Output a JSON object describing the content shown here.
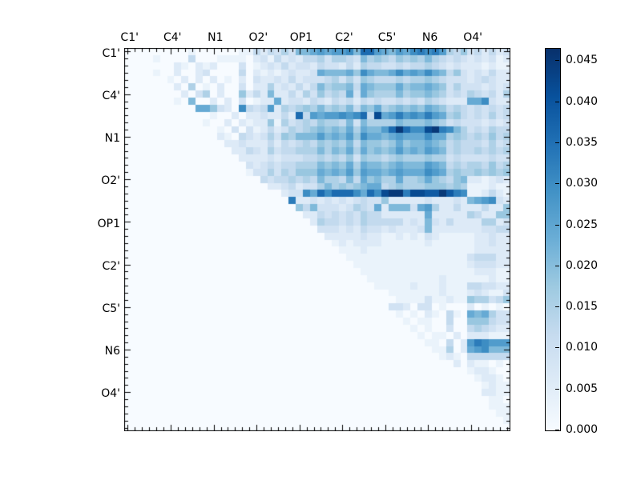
{
  "chart_data": {
    "type": "heatmap",
    "title": "",
    "xlabel": "",
    "ylabel": "",
    "n": 54,
    "tick_group_size": 6,
    "x_tick_labels": [
      "C1'",
      "C4'",
      "N1",
      "O2'",
      "OP1",
      "C2'",
      "C5'",
      "N6",
      "O4'"
    ],
    "y_tick_labels": [
      "C1'",
      "C4'",
      "N1",
      "O2'",
      "OP1",
      "C2'",
      "C5'",
      "N6",
      "O4'"
    ],
    "colormap": "Blues",
    "vmin": 0.0,
    "vmax": 0.0465,
    "cell_unit": 0.003,
    "grid": false,
    "legend_position": "colorbar-right",
    "structure_note": "upper-triangular matrix; lower triangle is zero",
    "matrix_hex_rows": [
      "0000000001000000114243537789899a7cc98798abab9546342423",
      "000010000400011110231423244535543756546565754343232312",
      "000000021021200030123242332433242544334344543232221211",
      "000010020023000040212123223877786a8778a898a87463232422",
      "000000102020201020322324233345353654445455654333234322",
      "000000020501020030225232424756674876668677876353332323",
      "000000002035020062427224253645483865557566765343543425",
      "00000001070020203012282332432434243433434354322288a322",
      "0000000000886320a4349254565756574768567676876454343434",
      "000000000000100202232242c49899a9ac4e89b9a9b98564343534",
      "000000000001002021226153454655473755557666765343332323",
      "0000000000000103031242354567676858779cfcaaefba75343544",
      "000000000000021043235365777978796a88789888a88565454645",
      "000000000000002232224243454656574766568677876454443534",
      "000000000000000224325344555757685867679787987454454545",
      "000000000000000022223233344545463655456555655343333433",
      "000000000000000003234344555767685877678777987454554645",
      "000000000000000001335354666878796988789888a98565565656",
      "000000000000000000043445454755474867558556865467221232",
      "000000000000000000002234233575656788456555666565111211",
      "0000000000000000000000233a8caccca8caeffbeeddfdba112421",
      "00000000000000000000000b223232323433622222322232789a32",
      "000000000000000000000000647333235438277738952242224226",
      "000000000000000000000000022434343544222222822222542266",
      "000000000000000000000000002544343544444232732422225523",
      "000000000000000000000000000333232433232223722222223344",
      "000000000000000000000000000022222322112121321111122322",
      "000000000000000000000000000001212222111111211111122322",
      "000000000000000000000000000000111211111111111111122222",
      "000000000000000000000000000000011111111111111111344422",
      "000000000000000000000000000000001111111111111111233322",
      "000000000000000000000000000000000111111111111111122211",
      "000000000000000000000000000000000011111111112111111211",
      "000000000000000000000000000000000001111121112111443322",
      "000000000000000000000000000000000000011111112111232113",
      "000000000000000000000000000000000000001111311211655346",
      "000000000000000000000000000000000000033203301000201010",
      "000000000000000000000000000000000000001010210410878533",
      "000000000000000000000000000000000000000101100400666433",
      "000000000000000000000000000000000000000010100300454322",
      "000000000000000000000000000000000000000001011020222111",
      "0000000000000000000000000000000000000000001104029ba999",
      "00000000000000000000000000000000000000000001150289a777",
      "000000000000000000000000000000000000000000001210444444",
      "000000000000000000000000000000000000000000000020211010",
      "000000000000000000000000000000000000000000000000122100",
      "000000000000000000000000000000000000000000000000012210",
      "000000000000000000000000000000000000000000000000001211",
      "000000000000000000000000000000000000000000000000002211",
      "000000000000000000000000000000000000000000000000000110",
      "000000000000000000000000000000000000000000000000000111",
      "000000000000000000000000000000000000000000000000000011",
      "000000000000000000000000000000000000000000000000000001",
      "000000000000000000000000000000000000000000000000000000"
    ],
    "colorbar": {
      "tick_labels": [
        "0.000",
        "0.005",
        "0.010",
        "0.015",
        "0.020",
        "0.025",
        "0.030",
        "0.035",
        "0.040",
        "0.045"
      ],
      "tick_values": [
        0.0,
        0.005,
        0.01,
        0.015,
        0.02,
        0.025,
        0.03,
        0.035,
        0.04,
        0.045
      ]
    },
    "colors": {
      "cmap_low": "#f7fbff",
      "cmap_high": "#08306b",
      "axis_line": "#000000",
      "background": "#ffffff"
    }
  }
}
